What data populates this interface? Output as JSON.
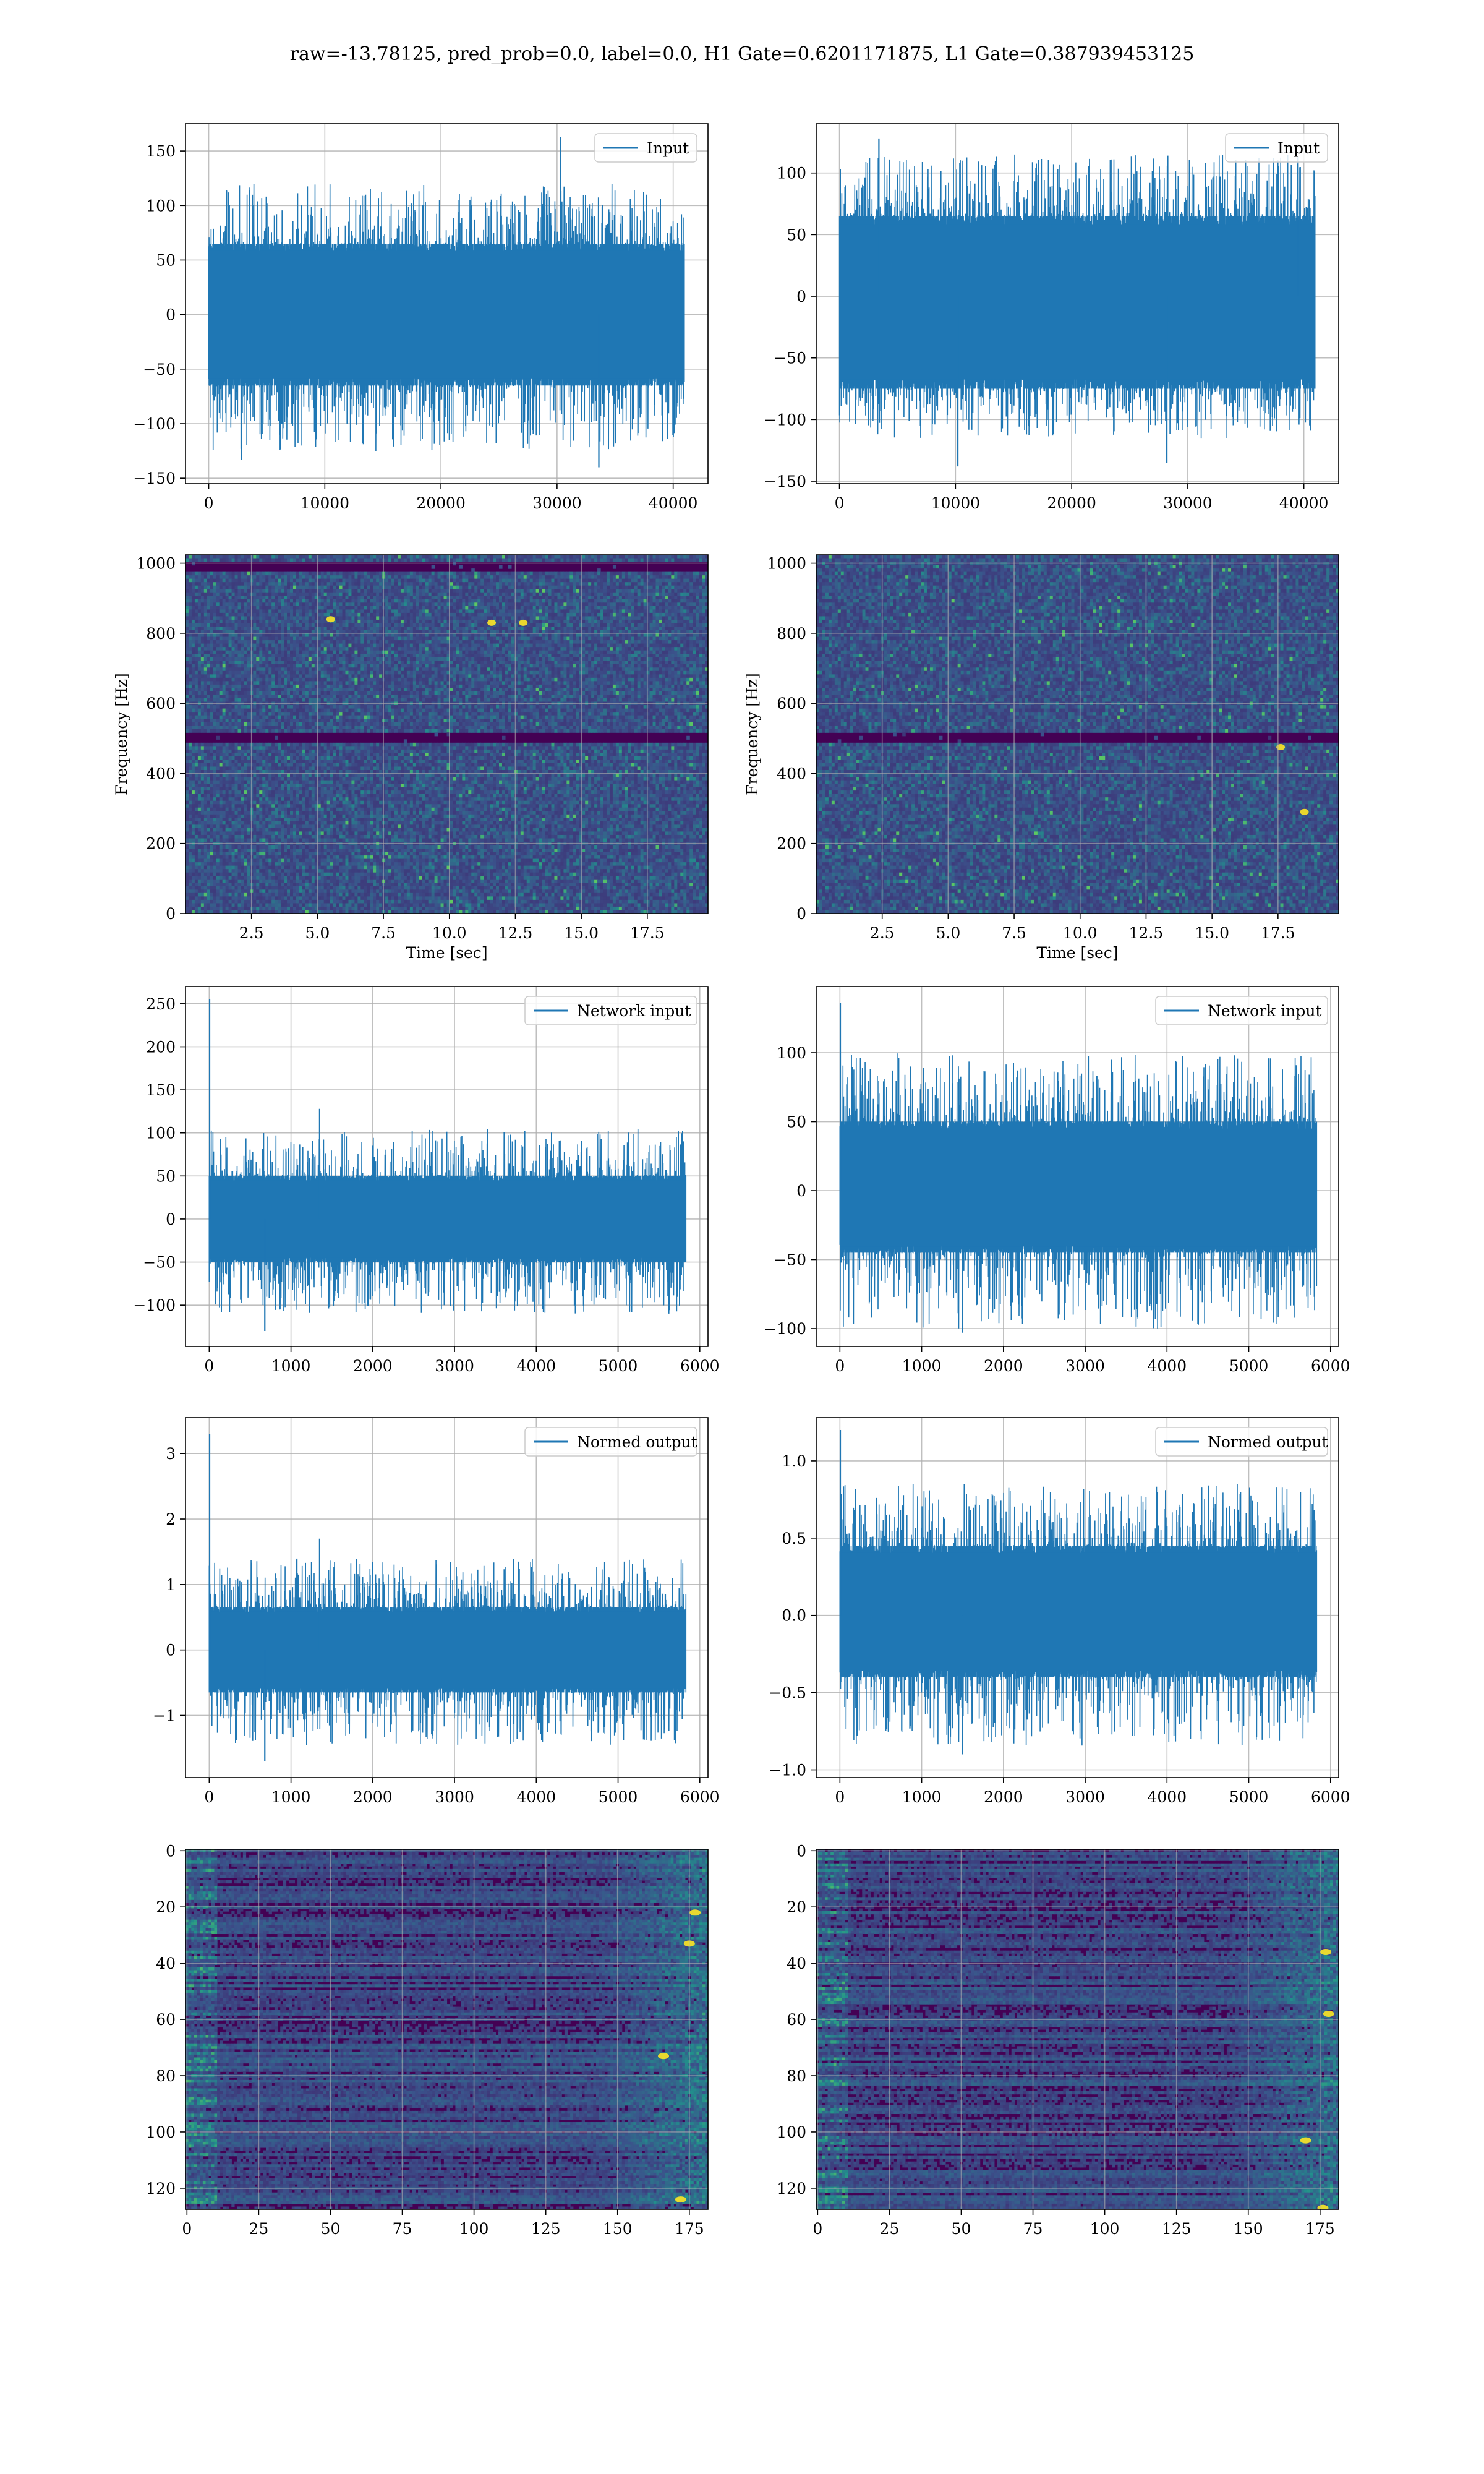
{
  "suptitle": "raw=-13.78125, pred_prob=0.0, label=0.0, H1 Gate=0.6201171875, L1 Gate=0.387939453125",
  "colors": {
    "line": "#1f77b4",
    "grid": "#b0b0b0",
    "viridis_dark": "#440154",
    "viridis_mid": "#3b528b",
    "viridis_teal": "#21918c",
    "viridis_green": "#5ec962",
    "viridis_yellow": "#fde725"
  },
  "chart_data": [
    {
      "type": "line",
      "panel": "input-left",
      "legend": "Input",
      "legend_loc": "upper right",
      "grid": true,
      "xlim": [
        -2000,
        43000
      ],
      "ylim": [
        -155,
        175
      ],
      "xticks": [
        0,
        10000,
        20000,
        30000,
        40000
      ],
      "xtick_labels": [
        "0",
        "10000",
        "20000",
        "30000",
        "40000"
      ],
      "yticks": [
        -150,
        -100,
        -50,
        0,
        50,
        100,
        150
      ],
      "ytick_labels": [
        "−150",
        "−100",
        "−50",
        "0",
        "50",
        "100",
        "150"
      ],
      "x_range": [
        0,
        40960
      ],
      "band": [
        -65,
        65
      ],
      "spike_range": [
        -125,
        120
      ],
      "peaks": [
        {
          "x": 30300,
          "y": 163
        },
        {
          "x": 33600,
          "y": -140
        },
        {
          "x": 2800,
          "y": -133
        }
      ]
    },
    {
      "type": "line",
      "panel": "input-right",
      "legend": "Input",
      "legend_loc": "upper right",
      "grid": true,
      "xlim": [
        -2000,
        43000
      ],
      "ylim": [
        -152,
        140
      ],
      "xticks": [
        0,
        10000,
        20000,
        30000,
        40000
      ],
      "xtick_labels": [
        "0",
        "10000",
        "20000",
        "30000",
        "40000"
      ],
      "yticks": [
        -150,
        -100,
        -50,
        0,
        50,
        100
      ],
      "ytick_labels": [
        "−150",
        "−100",
        "−50",
        "0",
        "50",
        "100"
      ],
      "x_range": [
        0,
        40960
      ],
      "band": [
        -75,
        65
      ],
      "spike_range": [
        -115,
        115
      ],
      "peaks": [
        {
          "x": 3400,
          "y": 128
        },
        {
          "x": 10200,
          "y": -138
        },
        {
          "x": 28200,
          "y": -135
        },
        {
          "x": 39500,
          "y": 113
        }
      ]
    },
    {
      "type": "heatmap",
      "panel": "spectrogram-left",
      "grid": true,
      "xlim": [
        0.0,
        19.8
      ],
      "ylim": [
        0,
        1024
      ],
      "xticks": [
        2.5,
        5.0,
        7.5,
        10.0,
        12.5,
        15.0,
        17.5
      ],
      "xtick_labels": [
        "2.5",
        "5.0",
        "7.5",
        "10.0",
        "12.5",
        "15.0",
        "17.5"
      ],
      "yticks": [
        0,
        200,
        400,
        600,
        800,
        1000
      ],
      "ytick_labels": [
        "0",
        "200",
        "400",
        "600",
        "800",
        "1000"
      ],
      "xlabel": "Time [sec]",
      "ylabel": "Frequency [Hz]",
      "dark_bands": [
        500,
        990
      ],
      "hot_spots": [
        [
          11.6,
          830
        ],
        [
          12.8,
          830
        ],
        [
          5.5,
          840
        ]
      ]
    },
    {
      "type": "heatmap",
      "panel": "spectrogram-right",
      "grid": true,
      "xlim": [
        0.0,
        19.8
      ],
      "ylim": [
        0,
        1024
      ],
      "xticks": [
        2.5,
        5.0,
        7.5,
        10.0,
        12.5,
        15.0,
        17.5
      ],
      "xtick_labels": [
        "2.5",
        "5.0",
        "7.5",
        "10.0",
        "12.5",
        "15.0",
        "17.5"
      ],
      "yticks": [
        0,
        200,
        400,
        600,
        800,
        1000
      ],
      "ytick_labels": [
        "0",
        "200",
        "400",
        "600",
        "800",
        "1000"
      ],
      "xlabel": "Time [sec]",
      "ylabel": "Frequency [Hz]",
      "dark_bands": [
        500
      ],
      "hot_spots": [
        [
          17.6,
          475
        ],
        [
          18.5,
          290
        ]
      ]
    },
    {
      "type": "line",
      "panel": "network-input-left",
      "legend": "Network input",
      "legend_loc": "upper right",
      "grid": true,
      "xlim": [
        -290,
        6100
      ],
      "ylim": [
        -148,
        270
      ],
      "xticks": [
        0,
        1000,
        2000,
        3000,
        4000,
        5000,
        6000
      ],
      "xtick_labels": [
        "0",
        "1000",
        "2000",
        "3000",
        "4000",
        "5000",
        "6000"
      ],
      "yticks": [
        -100,
        -50,
        0,
        50,
        100,
        150,
        200,
        250
      ],
      "ytick_labels": [
        "−100",
        "−50",
        "0",
        "50",
        "100",
        "150",
        "200",
        "250"
      ],
      "x_range": [
        0,
        5830
      ],
      "band": [
        -50,
        50
      ],
      "spike_range": [
        -110,
        105
      ],
      "peaks": [
        {
          "x": 5,
          "y": 255
        },
        {
          "x": 680,
          "y": -130
        },
        {
          "x": 1350,
          "y": 128
        }
      ]
    },
    {
      "type": "line",
      "panel": "network-input-right",
      "legend": "Network input",
      "legend_loc": "upper right",
      "grid": true,
      "xlim": [
        -290,
        6100
      ],
      "ylim": [
        -113,
        148
      ],
      "xticks": [
        0,
        1000,
        2000,
        3000,
        4000,
        5000,
        6000
      ],
      "xtick_labels": [
        "0",
        "1000",
        "2000",
        "3000",
        "4000",
        "5000",
        "6000"
      ],
      "yticks": [
        -100,
        -50,
        0,
        50,
        100
      ],
      "ytick_labels": [
        "−100",
        "−50",
        "0",
        "50",
        "100"
      ],
      "x_range": [
        0,
        5830
      ],
      "band": [
        -45,
        50
      ],
      "spike_range": [
        -100,
        100
      ],
      "peaks": [
        {
          "x": 5,
          "y": 136
        },
        {
          "x": 1500,
          "y": -103
        }
      ]
    },
    {
      "type": "line",
      "panel": "normed-output-left",
      "legend": "Normed output",
      "legend_loc": "upper right",
      "grid": true,
      "xlim": [
        -290,
        6100
      ],
      "ylim": [
        -1.95,
        3.55
      ],
      "xticks": [
        0,
        1000,
        2000,
        3000,
        4000,
        5000,
        6000
      ],
      "xtick_labels": [
        "0",
        "1000",
        "2000",
        "3000",
        "4000",
        "5000",
        "6000"
      ],
      "yticks": [
        -1,
        0,
        1,
        2,
        3
      ],
      "ytick_labels": [
        "−1",
        "0",
        "1",
        "2",
        "3"
      ],
      "x_range": [
        0,
        5830
      ],
      "band": [
        -0.65,
        0.65
      ],
      "spike_range": [
        -1.45,
        1.4
      ],
      "peaks": [
        {
          "x": 5,
          "y": 3.3
        },
        {
          "x": 680,
          "y": -1.7
        },
        {
          "x": 1350,
          "y": 1.7
        }
      ]
    },
    {
      "type": "line",
      "panel": "normed-output-right",
      "legend": "Normed output",
      "legend_loc": "upper right",
      "grid": true,
      "xlim": [
        -290,
        6100
      ],
      "ylim": [
        -1.05,
        1.28
      ],
      "xticks": [
        0,
        1000,
        2000,
        3000,
        4000,
        5000,
        6000
      ],
      "xtick_labels": [
        "0",
        "1000",
        "2000",
        "3000",
        "4000",
        "5000",
        "6000"
      ],
      "yticks": [
        -1.0,
        -0.5,
        0.0,
        0.5,
        1.0
      ],
      "ytick_labels": [
        "−1.0",
        "−0.5",
        "0.0",
        "0.5",
        "1.0"
      ],
      "x_range": [
        0,
        5830
      ],
      "band": [
        -0.4,
        0.45
      ],
      "spike_range": [
        -0.85,
        0.85
      ],
      "peaks": [
        {
          "x": 5,
          "y": 1.2
        },
        {
          "x": 1500,
          "y": -0.9
        }
      ]
    },
    {
      "type": "heatmap",
      "panel": "feature-map-left",
      "grid": true,
      "inverted_y": true,
      "xlim": [
        -0.5,
        181.5
      ],
      "ylim": [
        127.5,
        -0.5
      ],
      "xticks": [
        0,
        25,
        50,
        75,
        100,
        125,
        150,
        175
      ],
      "xtick_labels": [
        "0",
        "25",
        "50",
        "75",
        "100",
        "125",
        "150",
        "175"
      ],
      "yticks": [
        0,
        20,
        40,
        60,
        80,
        100,
        120
      ],
      "ytick_labels": [
        "0",
        "20",
        "40",
        "60",
        "80",
        "100",
        "120"
      ],
      "hot_spots": [
        [
          166,
          73
        ],
        [
          172,
          124
        ],
        [
          177,
          22
        ],
        [
          175,
          33
        ]
      ]
    },
    {
      "type": "heatmap",
      "panel": "feature-map-right",
      "grid": true,
      "inverted_y": true,
      "xlim": [
        -0.5,
        181.5
      ],
      "ylim": [
        127.5,
        -0.5
      ],
      "xticks": [
        0,
        25,
        50,
        75,
        100,
        125,
        150,
        175
      ],
      "xtick_labels": [
        "0",
        "25",
        "50",
        "75",
        "100",
        "125",
        "150",
        "175"
      ],
      "yticks": [
        0,
        20,
        40,
        60,
        80,
        100,
        120
      ],
      "ytick_labels": [
        "0",
        "20",
        "40",
        "60",
        "80",
        "100",
        "120"
      ],
      "hot_spots": [
        [
          177,
          36
        ],
        [
          178,
          58
        ],
        [
          176,
          127
        ],
        [
          170,
          103
        ]
      ]
    }
  ]
}
